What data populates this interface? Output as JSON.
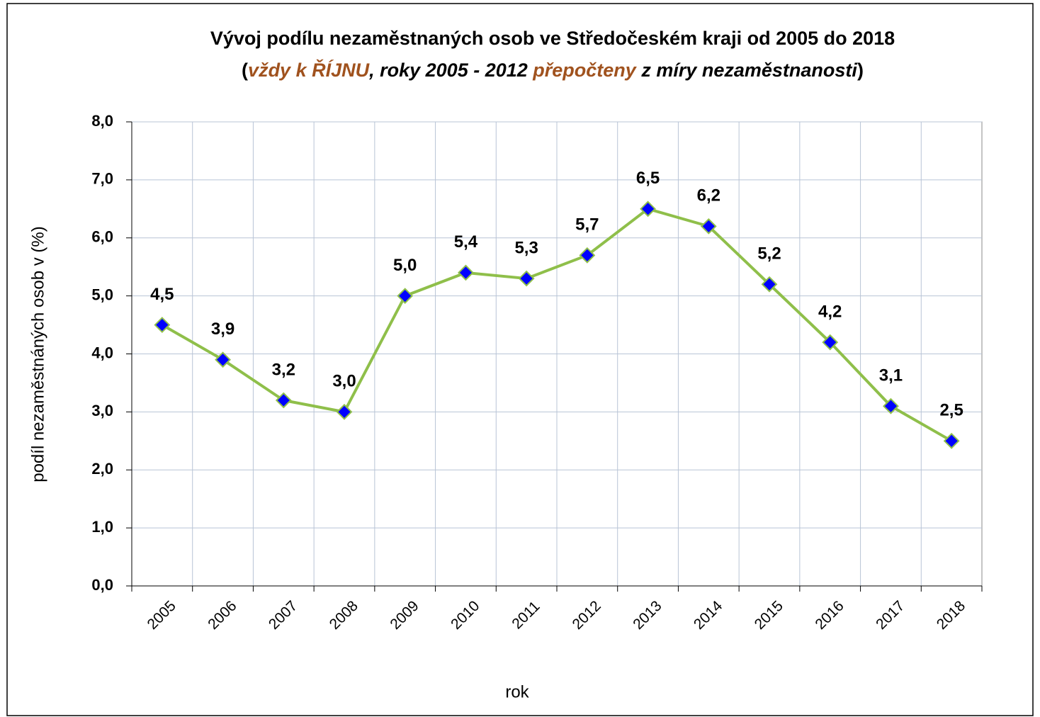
{
  "chart_data": {
    "type": "line",
    "title": "Vývoj podílu nezaměstnaných osob ve Středočeském kraji od 2005 do 2018",
    "subtitle_parts": [
      {
        "text": "(",
        "color": "#000000",
        "italic": false
      },
      {
        "text": "vždy k ŘÍJNU",
        "color": "#a0521e",
        "italic": true
      },
      {
        "text": ", roky 2005 - 2012 ",
        "color": "#000000",
        "italic": true
      },
      {
        "text": "přepočteny",
        "color": "#a0521e",
        "italic": true
      },
      {
        "text": " z míry nezaměstnanosti",
        "color": "#000000",
        "italic": true
      },
      {
        "text": ")",
        "color": "#000000",
        "italic": false
      }
    ],
    "x_label": "rok",
    "y_label": "podíl nezaměstnáných osob v (%)",
    "categories": [
      "2005",
      "2006",
      "2007",
      "2008",
      "2009",
      "2010",
      "2011",
      "2012",
      "2013",
      "2014",
      "2015",
      "2016",
      "2017",
      "2018"
    ],
    "series": [
      {
        "name": "podíl",
        "color": "#8fbf4a",
        "marker_color": "#0000ff",
        "values": [
          4.5,
          3.9,
          3.2,
          3.0,
          5.0,
          5.4,
          5.3,
          5.7,
          6.5,
          6.2,
          5.2,
          4.2,
          3.1,
          2.5
        ],
        "value_labels": [
          "4,5",
          "3,9",
          "3,2",
          "3,0",
          "5,0",
          "5,4",
          "5,3",
          "5,7",
          "6,5",
          "6,2",
          "5,2",
          "4,2",
          "3,1",
          "2,5"
        ]
      }
    ],
    "ylim": [
      0,
      8
    ],
    "yticks": [
      {
        "value": 0,
        "label": "0,0"
      },
      {
        "value": 1,
        "label": "1,0"
      },
      {
        "value": 2,
        "label": "2,0"
      },
      {
        "value": 3,
        "label": "3,0"
      },
      {
        "value": 4,
        "label": "4,0"
      },
      {
        "value": 5,
        "label": "5,0"
      },
      {
        "value": 6,
        "label": "6,0"
      },
      {
        "value": 7,
        "label": "7,0"
      },
      {
        "value": 8,
        "label": "8,0"
      }
    ],
    "grid": true
  }
}
